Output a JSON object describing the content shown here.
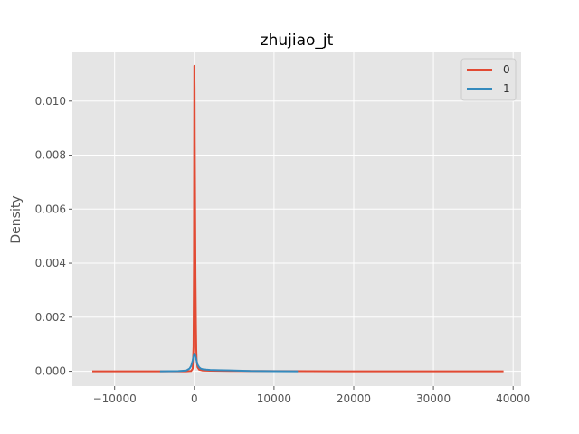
{
  "chart_data": {
    "type": "line",
    "title": "zhujiao_jt",
    "xlabel": "",
    "ylabel": "Density",
    "xlim": [
      -15300,
      41000
    ],
    "ylim": [
      -0.00055,
      0.0118
    ],
    "xticks": [
      -10000,
      0,
      10000,
      20000,
      30000,
      40000
    ],
    "xtick_labels": [
      "−10000",
      "0",
      "10000",
      "20000",
      "30000",
      "40000"
    ],
    "yticks": [
      0.0,
      0.002,
      0.004,
      0.006,
      0.008,
      0.01
    ],
    "ytick_labels": [
      "0.000",
      "0.002",
      "0.004",
      "0.006",
      "0.008",
      "0.010"
    ],
    "grid": true,
    "legend_position": "top-right",
    "background": "#e5e5e5",
    "series": [
      {
        "name": "0",
        "color": "#e24a33",
        "x": [
          -12800,
          -3000,
          -1000,
          -400,
          -200,
          -100,
          -50,
          0,
          30,
          60,
          100,
          150,
          200,
          250,
          300,
          400,
          600,
          1000,
          2000,
          5000,
          10000,
          20000,
          30000,
          38800
        ],
        "y": [
          0.0,
          0.0,
          0.0,
          1e-05,
          0.0001,
          0.0009,
          0.004,
          0.0113,
          0.0105,
          0.0085,
          0.006,
          0.0035,
          0.0017,
          0.0008,
          0.0004,
          0.00015,
          6e-05,
          3e-05,
          2e-05,
          1e-05,
          5e-06,
          0.0,
          0.0,
          0.0
        ]
      },
      {
        "name": "1",
        "color": "#348abd",
        "x": [
          -4300,
          -2000,
          -1000,
          -600,
          -400,
          -200,
          -100,
          0,
          100,
          200,
          300,
          400,
          600,
          800,
          1000,
          1500,
          2000,
          3000,
          5000,
          7000,
          10000,
          13000
        ],
        "y": [
          0.0,
          5e-06,
          3e-05,
          0.0001,
          0.0002,
          0.0004,
          0.00055,
          0.00065,
          0.0006,
          0.0005,
          0.00038,
          0.00025,
          0.00015,
          0.0001,
          8e-05,
          6e-05,
          5e-05,
          4e-05,
          3e-05,
          1e-05,
          3e-06,
          0.0
        ]
      }
    ]
  }
}
